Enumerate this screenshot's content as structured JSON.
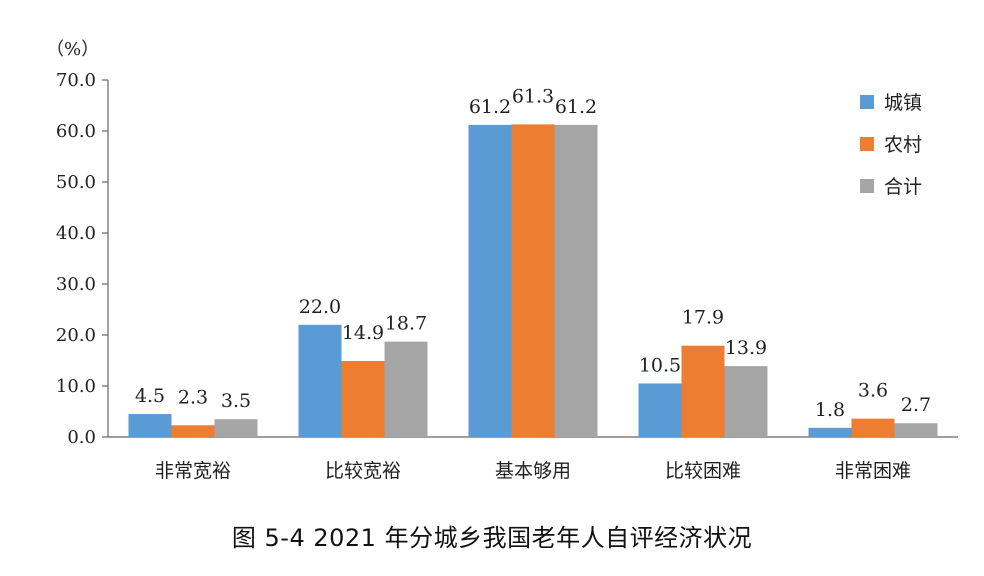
{
  "chart_data": {
    "type": "bar",
    "unit_label": "（%）",
    "categories": [
      "非常宽裕",
      "比较宽裕",
      "基本够用",
      "比较困难",
      "非常困难"
    ],
    "series": [
      {
        "name": "城镇",
        "values": [
          4.5,
          22.0,
          61.2,
          10.5,
          1.8
        ],
        "color": "#5b9bd5"
      },
      {
        "name": "农村",
        "values": [
          2.3,
          14.9,
          61.3,
          17.9,
          3.6
        ],
        "color": "#ed7d31"
      },
      {
        "name": "合计",
        "values": [
          3.5,
          18.7,
          61.2,
          13.9,
          2.7
        ],
        "color": "#a5a5a5"
      }
    ],
    "ylim": [
      0,
      70
    ],
    "yticks": [
      "0.0",
      "10.0",
      "20.0",
      "30.0",
      "40.0",
      "50.0",
      "60.0",
      "70.0"
    ],
    "grid": false,
    "legend_position": "top-right"
  },
  "caption": "图 5-4 2021 年分城乡我国老年人自评经济状况"
}
